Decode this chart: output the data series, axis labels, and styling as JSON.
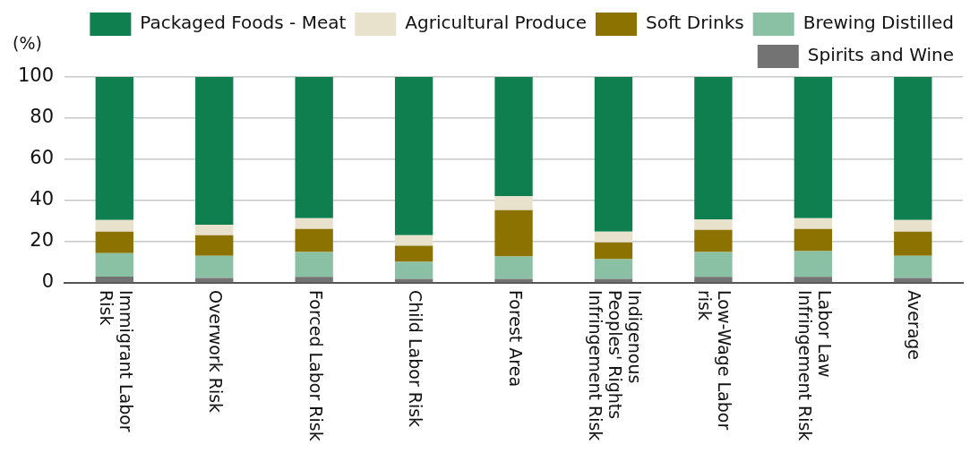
{
  "chart_data": {
    "type": "bar",
    "stacked": true,
    "ylabel": "(%)",
    "categories": [
      "Immigrant Labor Risk",
      "Overwork Risk",
      "Forced Labor Risk",
      "Child Labor Risk",
      "Forest Area",
      "Indigenous Peoples' Rights Infringement Risk",
      "Low-Wage Labor risk",
      "Labor Law Infringement Risk",
      "Average"
    ],
    "series": [
      {
        "name": "Spirits and Wine",
        "color": "#737373",
        "values": [
          3.0,
          2.4,
          2.9,
          2.0,
          2.0,
          2.0,
          2.9,
          2.9,
          2.4
        ]
      },
      {
        "name": "Brewing Distilled",
        "color": "#8ac1a4",
        "values": [
          11.5,
          10.8,
          12.1,
          8.2,
          10.8,
          9.5,
          12.1,
          12.5,
          10.8
        ]
      },
      {
        "name": "Soft Drinks",
        "color": "#8c7200",
        "values": [
          10.4,
          10.0,
          11.2,
          7.8,
          22.5,
          8.2,
          10.8,
          10.8,
          11.7
        ]
      },
      {
        "name": "Agricultural Produce",
        "color": "#e8e1cc",
        "values": [
          5.6,
          5.1,
          5.2,
          5.2,
          6.9,
          5.2,
          5.1,
          5.2,
          5.6
        ]
      },
      {
        "name": "Packaged Foods - Meat",
        "color": "#0f7f4f",
        "values": [
          69.5,
          71.7,
          68.6,
          76.8,
          57.8,
          75.1,
          69.1,
          68.6,
          69.5
        ]
      }
    ],
    "ylim": [
      0,
      100
    ],
    "yticks": [
      0,
      20,
      40,
      60,
      80,
      100
    ],
    "grid": "y",
    "legend": "top right"
  }
}
